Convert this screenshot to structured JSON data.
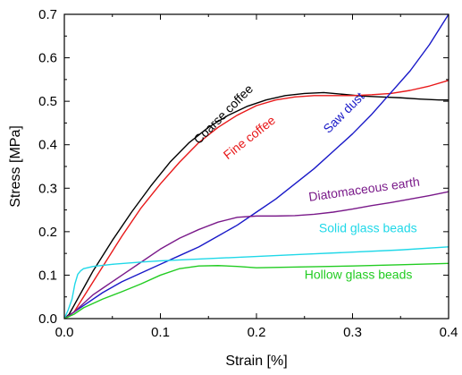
{
  "chart_data": {
    "type": "line",
    "title": "",
    "xlabel": "Strain [%]",
    "ylabel": "Stress [MPa]",
    "xlim": [
      0.0,
      0.4
    ],
    "ylim": [
      0.0,
      0.7
    ],
    "xticks": [
      "0.0",
      "0.1",
      "0.2",
      "0.3",
      "0.4"
    ],
    "yticks": [
      "0.0",
      "0.1",
      "0.2",
      "0.3",
      "0.4",
      "0.5",
      "0.6",
      "0.7"
    ],
    "grid": false,
    "legend": "inline labels",
    "series": [
      {
        "name": "Coarse coffee",
        "color": "#000000",
        "x": [
          0.0,
          0.005,
          0.01,
          0.02,
          0.03,
          0.05,
          0.07,
          0.09,
          0.11,
          0.13,
          0.15,
          0.17,
          0.19,
          0.21,
          0.23,
          0.25,
          0.27,
          0.29,
          0.31,
          0.33,
          0.35,
          0.37,
          0.39,
          0.4
        ],
        "y": [
          0.0,
          0.01,
          0.03,
          0.07,
          0.11,
          0.18,
          0.245,
          0.305,
          0.36,
          0.405,
          0.44,
          0.467,
          0.488,
          0.503,
          0.513,
          0.518,
          0.52,
          0.516,
          0.512,
          0.51,
          0.508,
          0.505,
          0.503,
          0.503
        ]
      },
      {
        "name": "Fine coffee",
        "color": "#e8191a",
        "x": [
          0.0,
          0.01,
          0.02,
          0.04,
          0.06,
          0.08,
          0.1,
          0.12,
          0.14,
          0.16,
          0.18,
          0.2,
          0.22,
          0.24,
          0.26,
          0.28,
          0.3,
          0.32,
          0.34,
          0.36,
          0.38,
          0.4
        ],
        "y": [
          0.0,
          0.015,
          0.05,
          0.12,
          0.19,
          0.255,
          0.31,
          0.36,
          0.405,
          0.44,
          0.468,
          0.49,
          0.503,
          0.51,
          0.513,
          0.513,
          0.513,
          0.515,
          0.518,
          0.525,
          0.535,
          0.548
        ]
      },
      {
        "name": "Saw dust",
        "color": "#1919c8",
        "x": [
          0.0,
          0.02,
          0.04,
          0.06,
          0.08,
          0.1,
          0.12,
          0.14,
          0.16,
          0.18,
          0.2,
          0.22,
          0.24,
          0.26,
          0.28,
          0.3,
          0.32,
          0.34,
          0.36,
          0.38,
          0.4
        ],
        "y": [
          0.0,
          0.03,
          0.06,
          0.085,
          0.105,
          0.125,
          0.145,
          0.165,
          0.19,
          0.215,
          0.245,
          0.275,
          0.31,
          0.345,
          0.385,
          0.425,
          0.47,
          0.52,
          0.57,
          0.63,
          0.7
        ]
      },
      {
        "name": "Diatomaceous earth",
        "color": "#7a1a8a",
        "x": [
          0.0,
          0.01,
          0.02,
          0.03,
          0.04,
          0.05,
          0.06,
          0.08,
          0.1,
          0.12,
          0.14,
          0.16,
          0.18,
          0.2,
          0.22,
          0.24,
          0.26,
          0.28,
          0.3,
          0.32,
          0.34,
          0.36,
          0.38,
          0.4
        ],
        "y": [
          0.0,
          0.015,
          0.035,
          0.055,
          0.07,
          0.085,
          0.1,
          0.13,
          0.16,
          0.185,
          0.205,
          0.222,
          0.233,
          0.236,
          0.236,
          0.237,
          0.24,
          0.245,
          0.252,
          0.26,
          0.267,
          0.275,
          0.283,
          0.292
        ]
      },
      {
        "name": "Solid glass beads",
        "color": "#1fd8e8",
        "x": [
          0.0,
          0.004,
          0.008,
          0.011,
          0.014,
          0.017,
          0.02,
          0.03,
          0.05,
          0.08,
          0.1,
          0.15,
          0.2,
          0.25,
          0.3,
          0.35,
          0.4
        ],
        "y": [
          0.0,
          0.02,
          0.045,
          0.08,
          0.102,
          0.11,
          0.115,
          0.12,
          0.125,
          0.13,
          0.133,
          0.138,
          0.143,
          0.148,
          0.153,
          0.158,
          0.165
        ]
      },
      {
        "name": "Hollow glass beads",
        "color": "#22cc22",
        "x": [
          0.0,
          0.01,
          0.02,
          0.04,
          0.06,
          0.08,
          0.1,
          0.12,
          0.14,
          0.16,
          0.18,
          0.2,
          0.25,
          0.3,
          0.35,
          0.4
        ],
        "y": [
          0.0,
          0.01,
          0.025,
          0.045,
          0.062,
          0.08,
          0.1,
          0.115,
          0.121,
          0.122,
          0.12,
          0.117,
          0.119,
          0.121,
          0.124,
          0.127
        ]
      }
    ],
    "annotations": [
      {
        "text": "Coarse coffee",
        "x": 0.14,
        "y": 0.4,
        "angle": -45,
        "color": "#000000"
      },
      {
        "text": "Fine coffee",
        "x": 0.17,
        "y": 0.365,
        "angle": -38,
        "color": "#e8191a"
      },
      {
        "text": "Saw dust",
        "x": 0.275,
        "y": 0.425,
        "angle": -45,
        "color": "#1919c8"
      },
      {
        "text": "Diatomaceous earth",
        "x": 0.255,
        "y": 0.27,
        "angle": -8,
        "color": "#7a1a8a"
      },
      {
        "text": "Solid glass beads",
        "x": 0.265,
        "y": 0.199,
        "angle": 0,
        "color": "#1fd8e8"
      },
      {
        "text": "Hollow glass beads",
        "x": 0.25,
        "y": 0.092,
        "angle": 0,
        "color": "#22cc22"
      }
    ]
  }
}
